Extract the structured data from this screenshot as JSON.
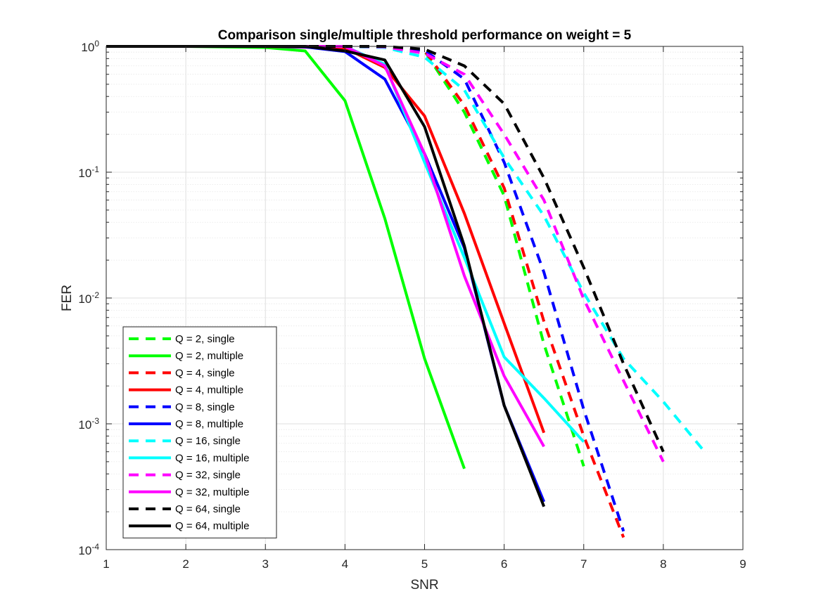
{
  "chart_data": {
    "type": "line",
    "title": "Comparison single/multiple threshold performance on weight = 5",
    "xlabel": "SNR",
    "ylabel": "FER",
    "xlim": [
      1,
      9
    ],
    "ylim": [
      0.0001,
      1
    ],
    "yscale": "log",
    "grid": true,
    "minor_grid": true,
    "legend_position": "lower-left",
    "x_ticks": [
      {
        "value": 1,
        "label": "1"
      },
      {
        "value": 2,
        "label": "2"
      },
      {
        "value": 3,
        "label": "3"
      },
      {
        "value": 4,
        "label": "4"
      },
      {
        "value": 5,
        "label": "5"
      },
      {
        "value": 6,
        "label": "6"
      },
      {
        "value": 7,
        "label": "7"
      },
      {
        "value": 8,
        "label": "8"
      },
      {
        "value": 9,
        "label": "9"
      }
    ],
    "y_ticks": [
      {
        "value": 1,
        "base": "10",
        "exp": "0"
      },
      {
        "value": 0.1,
        "base": "10",
        "exp": "-1"
      },
      {
        "value": 0.01,
        "base": "10",
        "exp": "-2"
      },
      {
        "value": 0.001,
        "base": "10",
        "exp": "-3"
      },
      {
        "value": 0.0001,
        "base": "10",
        "exp": "-4"
      }
    ],
    "series": [
      {
        "name": "Q = 2, single",
        "color": "#00ff00",
        "dash": "dashed",
        "x": [
          1,
          2,
          3,
          3.5,
          4,
          4.5,
          5,
          5.5,
          6,
          6.5,
          7
        ],
        "y": [
          1,
          1,
          1,
          1,
          1,
          0.98,
          0.92,
          0.3,
          0.065,
          0.0043,
          0.00046
        ]
      },
      {
        "name": "Q = 2, multiple",
        "color": "#00ff00",
        "dash": "solid",
        "x": [
          1,
          2,
          3,
          3.5,
          4,
          4.5,
          5,
          5.5
        ],
        "y": [
          1,
          1,
          0.98,
          0.92,
          0.37,
          0.043,
          0.0033,
          0.00044
        ]
      },
      {
        "name": "Q = 4, single",
        "color": "#ff0000",
        "dash": "dashed",
        "x": [
          1,
          2,
          3,
          4,
          4.5,
          5,
          5.5,
          6,
          6.5,
          7,
          7.5
        ],
        "y": [
          1,
          1,
          1,
          1,
          0.99,
          0.93,
          0.34,
          0.075,
          0.0065,
          0.0008,
          0.000125
        ]
      },
      {
        "name": "Q = 4, multiple",
        "color": "#ff0000",
        "dash": "solid",
        "x": [
          1,
          2,
          3,
          4,
          4.5,
          5,
          5.5,
          6,
          6.5
        ],
        "y": [
          1,
          1,
          1,
          0.97,
          0.68,
          0.28,
          0.047,
          0.0063,
          0.00085
        ]
      },
      {
        "name": "Q = 8, single",
        "color": "#0000ff",
        "dash": "dashed",
        "x": [
          1,
          2,
          3,
          4,
          4.5,
          5,
          5.5,
          6,
          6.5,
          7,
          7.5
        ],
        "y": [
          1,
          1,
          1,
          1,
          0.99,
          0.93,
          0.55,
          0.12,
          0.016,
          0.0013,
          0.00014
        ]
      },
      {
        "name": "Q = 8, multiple",
        "color": "#0000ff",
        "dash": "solid",
        "x": [
          1,
          2,
          3,
          3.5,
          4,
          4.5,
          5,
          5.5,
          6,
          6.5
        ],
        "y": [
          1,
          1,
          1,
          0.99,
          0.91,
          0.55,
          0.14,
          0.025,
          0.0014,
          0.00024
        ]
      },
      {
        "name": "Q = 16, single",
        "color": "#00ffff",
        "dash": "dashed",
        "x": [
          1,
          2,
          3,
          4,
          4.5,
          5,
          5.5,
          6,
          6.5,
          7,
          7.5,
          8,
          8.5
        ],
        "y": [
          1,
          1,
          1,
          1,
          0.98,
          0.82,
          0.45,
          0.13,
          0.045,
          0.011,
          0.0033,
          0.0015,
          0.00062
        ]
      },
      {
        "name": "Q = 16, multiple",
        "color": "#00ffff",
        "dash": "solid",
        "x": [
          1,
          2,
          3,
          4,
          4.5,
          5,
          5.5,
          6,
          6.5,
          7
        ],
        "y": [
          1,
          1,
          1,
          1,
          0.72,
          0.12,
          0.021,
          0.0034,
          0.0016,
          0.00072
        ]
      },
      {
        "name": "Q = 32, single",
        "color": "#ff00ff",
        "dash": "dashed",
        "x": [
          1,
          2,
          3,
          4,
          4.5,
          5,
          5.5,
          6,
          6.5,
          7,
          7.5,
          8
        ],
        "y": [
          1,
          1,
          1,
          1,
          0.99,
          0.88,
          0.6,
          0.2,
          0.06,
          0.0098,
          0.0022,
          0.0005
        ]
      },
      {
        "name": "Q = 32, multiple",
        "color": "#ff00ff",
        "dash": "solid",
        "x": [
          1,
          2,
          3,
          4,
          4.5,
          5,
          5.5,
          6,
          6.5
        ],
        "y": [
          1,
          1,
          1,
          1,
          0.7,
          0.14,
          0.015,
          0.0024,
          0.00066
        ]
      },
      {
        "name": "Q = 64, single",
        "color": "#000000",
        "dash": "dashed",
        "x": [
          1,
          2,
          3,
          4,
          4.5,
          5,
          5.5,
          6,
          6.5,
          7,
          7.5,
          8
        ],
        "y": [
          1,
          1,
          1,
          1,
          1,
          0.95,
          0.7,
          0.35,
          0.09,
          0.0175,
          0.003,
          0.0006
        ]
      },
      {
        "name": "Q = 64, multiple",
        "color": "#000000",
        "dash": "solid",
        "x": [
          1,
          2,
          3,
          3.5,
          4,
          4.5,
          5,
          5.5,
          6,
          6.5
        ],
        "y": [
          1,
          1,
          1,
          1,
          0.92,
          0.78,
          0.23,
          0.026,
          0.0014,
          0.00022
        ]
      }
    ]
  }
}
